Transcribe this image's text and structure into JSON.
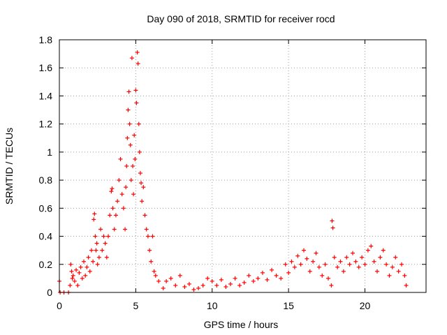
{
  "chart_data": {
    "type": "scatter",
    "title": "Day 090 of 2018, SRMTID for receiver rocd",
    "xlabel": "GPS time / hours",
    "ylabel": "SRMTID / TECUs",
    "xlim": [
      0,
      24
    ],
    "ylim": [
      0,
      1.8
    ],
    "x_ticks": [
      0,
      5,
      10,
      15,
      20
    ],
    "x_tick_labels": [
      "0",
      "5",
      "10",
      "15",
      "20"
    ],
    "y_ticks": [
      0,
      0.2,
      0.4,
      0.6,
      0.8,
      1.0,
      1.2,
      1.4,
      1.6,
      1.8
    ],
    "y_tick_labels": [
      "0",
      "0.2",
      "0.4",
      "0.6",
      "0.8",
      "1",
      "1.2",
      "1.4",
      "1.6",
      "1.8"
    ],
    "grid": true,
    "marker": "+",
    "marker_color": "#ff0000",
    "series": [
      {
        "name": "SRMTID",
        "points": [
          [
            0.0,
            0.08
          ],
          [
            0.05,
            0.0
          ],
          [
            0.3,
            0.0
          ],
          [
            0.6,
            0.0
          ],
          [
            0.7,
            0.05
          ],
          [
            0.75,
            0.2
          ],
          [
            0.8,
            0.15
          ],
          [
            0.85,
            0.1
          ],
          [
            0.9,
            0.12
          ],
          [
            1.0,
            0.08
          ],
          [
            1.1,
            0.16
          ],
          [
            1.2,
            0.05
          ],
          [
            1.3,
            0.14
          ],
          [
            1.4,
            0.18
          ],
          [
            1.5,
            0.1
          ],
          [
            1.6,
            0.22
          ],
          [
            1.7,
            0.12
          ],
          [
            1.8,
            0.18
          ],
          [
            1.9,
            0.25
          ],
          [
            2.0,
            0.15
          ],
          [
            2.1,
            0.3
          ],
          [
            2.2,
            0.22
          ],
          [
            2.25,
            0.52
          ],
          [
            2.3,
            0.56
          ],
          [
            2.35,
            0.4
          ],
          [
            2.4,
            0.3
          ],
          [
            2.45,
            0.35
          ],
          [
            2.5,
            0.2
          ],
          [
            2.6,
            0.25
          ],
          [
            2.7,
            0.45
          ],
          [
            2.8,
            0.3
          ],
          [
            2.9,
            0.4
          ],
          [
            3.0,
            0.35
          ],
          [
            3.1,
            0.25
          ],
          [
            3.2,
            0.4
          ],
          [
            3.3,
            0.55
          ],
          [
            3.4,
            0.72
          ],
          [
            3.45,
            0.74
          ],
          [
            3.5,
            0.6
          ],
          [
            3.6,
            0.45
          ],
          [
            3.7,
            0.55
          ],
          [
            3.8,
            0.65
          ],
          [
            3.9,
            0.8
          ],
          [
            4.0,
            0.95
          ],
          [
            4.1,
            0.7
          ],
          [
            4.2,
            0.6
          ],
          [
            4.3,
            0.45
          ],
          [
            4.35,
            0.75
          ],
          [
            4.4,
            0.9
          ],
          [
            4.45,
            1.1
          ],
          [
            4.5,
            1.3
          ],
          [
            4.55,
            1.43
          ],
          [
            4.6,
            1.2
          ],
          [
            4.65,
            1.05
          ],
          [
            4.7,
            0.8
          ],
          [
            4.75,
            1.67
          ],
          [
            4.8,
            0.9
          ],
          [
            4.85,
            0.7
          ],
          [
            4.9,
            1.12
          ],
          [
            4.95,
            0.95
          ],
          [
            5.0,
            1.44
          ],
          [
            5.05,
            1.35
          ],
          [
            5.1,
            1.71
          ],
          [
            5.15,
            1.63
          ],
          [
            5.2,
            1.2
          ],
          [
            5.25,
            1.0
          ],
          [
            5.3,
            0.85
          ],
          [
            5.35,
            0.78
          ],
          [
            5.4,
            0.65
          ],
          [
            5.5,
            0.75
          ],
          [
            5.6,
            0.55
          ],
          [
            5.7,
            0.45
          ],
          [
            5.8,
            0.4
          ],
          [
            5.9,
            0.3
          ],
          [
            6.0,
            0.22
          ],
          [
            6.1,
            0.4
          ],
          [
            6.2,
            0.15
          ],
          [
            6.3,
            0.12
          ],
          [
            6.5,
            0.08
          ],
          [
            6.8,
            0.03
          ],
          [
            7.0,
            0.08
          ],
          [
            7.3,
            0.1
          ],
          [
            7.6,
            0.05
          ],
          [
            7.9,
            0.12
          ],
          [
            8.2,
            0.04
          ],
          [
            8.5,
            0.06
          ],
          [
            8.8,
            0.02
          ],
          [
            9.1,
            0.03
          ],
          [
            9.4,
            0.05
          ],
          [
            9.7,
            0.1
          ],
          [
            10.0,
            0.08
          ],
          [
            10.3,
            0.05
          ],
          [
            10.6,
            0.09
          ],
          [
            10.9,
            0.04
          ],
          [
            11.2,
            0.06
          ],
          [
            11.5,
            0.1
          ],
          [
            11.8,
            0.05
          ],
          [
            12.1,
            0.07
          ],
          [
            12.4,
            0.12
          ],
          [
            12.7,
            0.08
          ],
          [
            13.0,
            0.1
          ],
          [
            13.3,
            0.14
          ],
          [
            13.6,
            0.09
          ],
          [
            13.9,
            0.16
          ],
          [
            14.2,
            0.12
          ],
          [
            14.5,
            0.1
          ],
          [
            14.8,
            0.2
          ],
          [
            15.0,
            0.14
          ],
          [
            15.2,
            0.22
          ],
          [
            15.4,
            0.18
          ],
          [
            15.6,
            0.26
          ],
          [
            15.8,
            0.2
          ],
          [
            16.0,
            0.3
          ],
          [
            16.2,
            0.24
          ],
          [
            16.4,
            0.15
          ],
          [
            16.6,
            0.22
          ],
          [
            16.8,
            0.28
          ],
          [
            17.0,
            0.18
          ],
          [
            17.2,
            0.12
          ],
          [
            17.4,
            0.2
          ],
          [
            17.6,
            0.1
          ],
          [
            17.8,
            0.05
          ],
          [
            17.85,
            0.51
          ],
          [
            17.9,
            0.46
          ],
          [
            18.0,
            0.25
          ],
          [
            18.2,
            0.18
          ],
          [
            18.4,
            0.22
          ],
          [
            18.6,
            0.15
          ],
          [
            18.8,
            0.25
          ],
          [
            19.0,
            0.2
          ],
          [
            19.2,
            0.28
          ],
          [
            19.4,
            0.22
          ],
          [
            19.6,
            0.18
          ],
          [
            19.8,
            0.25
          ],
          [
            20.0,
            0.2
          ],
          [
            20.2,
            0.3
          ],
          [
            20.4,
            0.33
          ],
          [
            20.6,
            0.22
          ],
          [
            20.8,
            0.15
          ],
          [
            21.0,
            0.25
          ],
          [
            21.2,
            0.3
          ],
          [
            21.4,
            0.2
          ],
          [
            21.6,
            0.12
          ],
          [
            21.8,
            0.18
          ],
          [
            22.0,
            0.25
          ],
          [
            22.2,
            0.15
          ],
          [
            22.4,
            0.2
          ],
          [
            22.6,
            0.12
          ],
          [
            22.7,
            0.05
          ]
        ]
      }
    ]
  }
}
